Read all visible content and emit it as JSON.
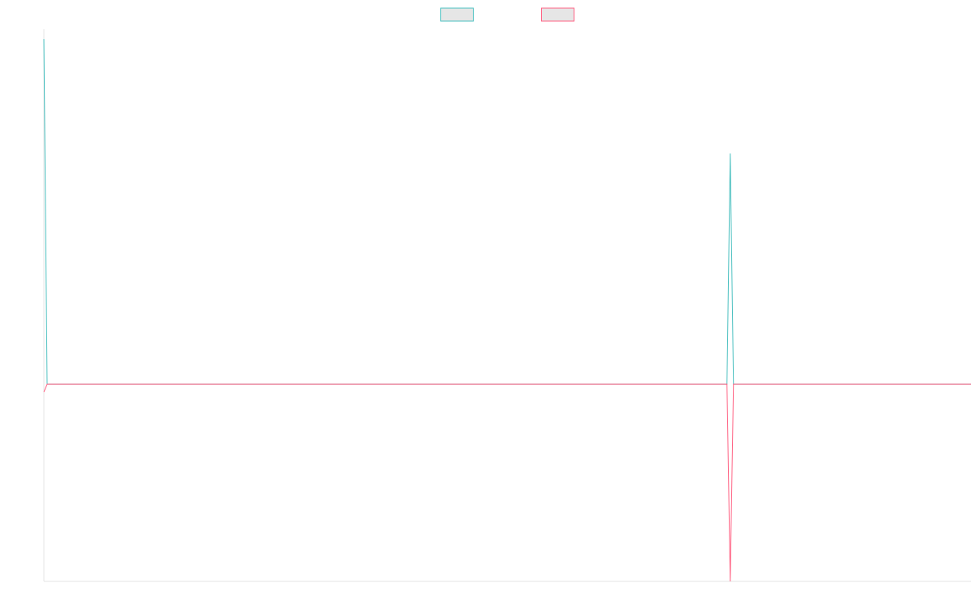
{
  "chart_data": {
    "type": "line",
    "title": "",
    "xlabel": "",
    "ylabel": "",
    "grid": false,
    "legend": "top-center",
    "x": [
      0,
      1,
      2,
      3,
      4,
      5,
      6,
      7,
      8,
      9,
      10,
      11,
      12,
      13,
      14,
      15,
      16,
      17,
      18,
      19,
      20,
      21,
      22,
      23,
      24,
      25,
      26,
      27,
      28,
      29,
      30,
      31,
      32,
      33,
      34,
      35,
      36,
      37,
      38,
      39,
      40,
      41,
      42,
      43,
      44,
      45,
      46,
      47,
      48,
      49,
      50,
      51,
      52,
      53,
      54,
      55,
      56,
      57,
      58,
      59,
      60,
      61,
      62,
      63,
      64,
      65,
      66,
      67,
      68,
      69,
      70,
      71,
      72,
      73,
      74,
      75,
      76,
      77,
      78,
      79,
      80,
      81,
      82,
      83,
      84,
      85,
      86,
      87,
      88,
      89,
      90,
      91,
      92,
      93,
      94,
      95,
      96,
      97,
      98,
      99,
      100,
      101,
      102,
      103,
      104,
      105,
      106,
      107,
      108,
      109,
      110,
      111,
      112,
      113,
      114,
      115,
      116,
      117,
      118,
      119,
      120,
      121,
      122,
      123,
      124,
      125,
      126,
      127,
      128,
      129,
      130,
      131,
      132,
      133,
      134,
      135,
      136,
      137,
      138,
      139,
      140,
      141,
      142,
      143,
      144,
      145,
      146,
      147,
      148,
      149,
      150,
      151,
      152,
      153,
      154,
      155,
      156,
      157,
      158,
      159,
      160,
      161,
      162,
      163,
      164,
      165,
      166,
      167,
      168,
      169,
      170,
      171,
      172,
      173,
      174,
      175,
      176,
      177,
      178,
      179,
      180,
      181,
      182,
      183,
      184,
      185,
      186,
      187,
      188,
      189,
      190,
      191,
      192,
      193,
      194,
      195,
      196,
      197,
      198,
      199,
      200,
      201,
      202,
      203,
      204,
      205,
      206,
      207,
      208,
      209,
      210,
      211,
      212,
      213,
      214,
      215,
      216,
      217,
      218,
      219,
      220,
      221,
      222,
      223,
      224,
      225,
      226,
      227,
      228,
      229,
      230,
      231,
      232,
      233,
      234,
      235,
      236,
      237,
      238,
      239,
      240,
      241,
      242,
      243,
      244,
      245,
      246,
      247,
      248,
      249,
      250,
      251,
      252,
      253,
      254,
      255,
      256,
      257,
      258,
      259,
      260,
      261,
      262,
      263,
      264,
      265,
      266,
      267,
      268,
      269,
      270,
      271,
      272,
      273,
      274,
      275,
      276,
      277,
      278,
      279,
      280,
      281,
      282,
      283,
      284,
      285
    ],
    "xlim": [
      0,
      285
    ],
    "ylim": [
      -1,
      1.8
    ],
    "series": [
      {
        "color": "#4bc0c0",
        "fill": "#e6e6e6",
        "points": [
          [
            0,
            1.75
          ],
          [
            1,
            0
          ],
          [
            284,
            0
          ],
          [
            285,
            0
          ]
        ],
        "spikes": [
          [
            210,
            0
          ],
          [
            211,
            1.17
          ],
          [
            212,
            0
          ]
        ]
      },
      {
        "color": "#ff6384",
        "fill": "#e6e6e6",
        "points": [
          [
            0,
            -0.04
          ],
          [
            1,
            0
          ],
          [
            284,
            0
          ],
          [
            285,
            0
          ]
        ],
        "spikes": [
          [
            210,
            0
          ],
          [
            211,
            -1
          ],
          [
            212,
            0
          ]
        ]
      }
    ]
  }
}
